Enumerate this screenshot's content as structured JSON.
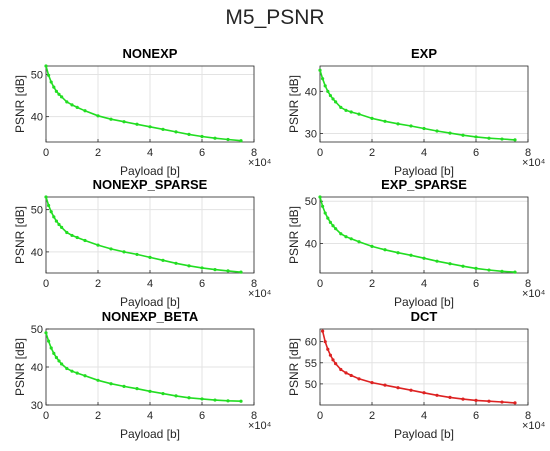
{
  "figure": {
    "title": "M5_PSNR"
  },
  "chart_data": [
    {
      "type": "line",
      "title": "NONEXP",
      "xlabel": "Payload [b]",
      "ylabel": "PSNR [dB]",
      "x_exponent": "×10⁴",
      "xlim": [
        0,
        80000
      ],
      "ylim": [
        34,
        52
      ],
      "yticks": [
        "40",
        "50"
      ],
      "xticks": [
        "0",
        "2",
        "4",
        "6",
        "8"
      ],
      "grid": true,
      "color": "#22dd22",
      "series": [
        {
          "x": [
            0,
            1000,
            2000,
            3000,
            4000,
            5000,
            6000,
            8000,
            10000,
            12000,
            15000,
            20000,
            25000,
            30000,
            35000,
            40000,
            45000,
            50000,
            55000,
            60000,
            65000,
            70000,
            75000
          ],
          "y": [
            52,
            49.8,
            48.2,
            47,
            46,
            45.3,
            44.7,
            43.5,
            42.8,
            42.2,
            41.4,
            40.2,
            39.4,
            38.8,
            38.2,
            37.6,
            37,
            36.4,
            35.8,
            35.3,
            34.9,
            34.6,
            34.3
          ]
        }
      ]
    },
    {
      "type": "line",
      "title": "EXP",
      "xlabel": "Payload [b]",
      "ylabel": "PSNR [dB]",
      "x_exponent": "×10⁴",
      "xlim": [
        0,
        80000
      ],
      "ylim": [
        28,
        46
      ],
      "yticks": [
        "30",
        "40"
      ],
      "xticks": [
        "0",
        "2",
        "4",
        "6",
        "8"
      ],
      "grid": true,
      "color": "#22dd22",
      "series": [
        {
          "x": [
            0,
            1000,
            2000,
            3000,
            4000,
            5000,
            6000,
            8000,
            10000,
            12000,
            15000,
            20000,
            25000,
            30000,
            35000,
            40000,
            45000,
            50000,
            55000,
            60000,
            65000,
            70000,
            75000
          ],
          "y": [
            45,
            43,
            41.3,
            40,
            39,
            38.2,
            37.5,
            36.2,
            35.5,
            35.1,
            34.6,
            33.6,
            32.9,
            32.3,
            31.8,
            31.2,
            30.6,
            30.1,
            29.6,
            29.2,
            28.9,
            28.7,
            28.5
          ]
        }
      ]
    },
    {
      "type": "line",
      "title": "NONEXP_SPARSE",
      "xlabel": "Payload [b]",
      "ylabel": "PSNR [dB]",
      "x_exponent": "×10⁴",
      "xlim": [
        0,
        80000
      ],
      "ylim": [
        35,
        53
      ],
      "yticks": [
        "40",
        "50"
      ],
      "xticks": [
        "0",
        "2",
        "4",
        "6",
        "8"
      ],
      "grid": true,
      "color": "#22dd22",
      "series": [
        {
          "x": [
            0,
            1000,
            2000,
            3000,
            4000,
            5000,
            6000,
            8000,
            10000,
            12000,
            15000,
            20000,
            25000,
            30000,
            35000,
            40000,
            45000,
            50000,
            55000,
            60000,
            65000,
            70000,
            75000
          ],
          "y": [
            53,
            51,
            49.5,
            48.3,
            47.3,
            46.5,
            45.8,
            44.6,
            43.9,
            43.4,
            42.7,
            41.6,
            40.7,
            40,
            39.4,
            38.7,
            38,
            37.3,
            36.7,
            36.2,
            35.8,
            35.5,
            35.2
          ]
        }
      ]
    },
    {
      "type": "line",
      "title": "EXP_SPARSE",
      "xlabel": "Payload [b]",
      "ylabel": "PSNR [dB]",
      "x_exponent": "×10⁴",
      "xlim": [
        0,
        80000
      ],
      "ylim": [
        33,
        51
      ],
      "yticks": [
        "40",
        "50"
      ],
      "xticks": [
        "0",
        "2",
        "4",
        "6",
        "8"
      ],
      "grid": true,
      "color": "#22dd22",
      "series": [
        {
          "x": [
            0,
            1000,
            2000,
            3000,
            4000,
            5000,
            6000,
            8000,
            10000,
            12000,
            15000,
            20000,
            25000,
            30000,
            35000,
            40000,
            45000,
            50000,
            55000,
            60000,
            65000,
            70000,
            75000
          ],
          "y": [
            51,
            48.8,
            47.2,
            46,
            45,
            44.2,
            43.5,
            42.3,
            41.6,
            41.1,
            40.4,
            39.3,
            38.5,
            37.8,
            37.2,
            36.5,
            35.8,
            35.2,
            34.6,
            34.1,
            33.7,
            33.4,
            33.2
          ]
        }
      ]
    },
    {
      "type": "line",
      "title": "NONEXP_BETA",
      "xlabel": "Payload [b]",
      "ylabel": "PSNR [dB]",
      "x_exponent": "×10⁴",
      "xlim": [
        0,
        80000
      ],
      "ylim": [
        30,
        50
      ],
      "yticks": [
        "30",
        "40",
        "50"
      ],
      "xticks": [
        "0",
        "2",
        "4",
        "6",
        "8"
      ],
      "grid": true,
      "color": "#22dd22",
      "series": [
        {
          "x": [
            0,
            1000,
            2000,
            3000,
            4000,
            5000,
            6000,
            8000,
            10000,
            12000,
            15000,
            20000,
            25000,
            30000,
            35000,
            40000,
            45000,
            50000,
            55000,
            60000,
            65000,
            70000,
            75000
          ],
          "y": [
            49,
            46.8,
            45,
            43.6,
            42.5,
            41.6,
            40.8,
            39.6,
            38.9,
            38.4,
            37.7,
            36.5,
            35.6,
            34.9,
            34.3,
            33.6,
            33,
            32.4,
            31.9,
            31.6,
            31.3,
            31.1,
            31
          ]
        }
      ]
    },
    {
      "type": "line",
      "title": "DCT",
      "xlabel": "Payload [b]",
      "ylabel": "PSNR [dB]",
      "x_exponent": "×10⁴",
      "xlim": [
        0,
        80000
      ],
      "ylim": [
        45,
        63
      ],
      "yticks": [
        "50",
        "55",
        "60"
      ],
      "xticks": [
        "0",
        "2",
        "4",
        "6",
        "8"
      ],
      "grid": true,
      "color": "#dd2222",
      "series": [
        {
          "x": [
            1000,
            2000,
            3000,
            4000,
            5000,
            6000,
            8000,
            10000,
            12000,
            15000,
            20000,
            25000,
            30000,
            35000,
            40000,
            45000,
            50000,
            55000,
            60000,
            65000,
            70000,
            75000
          ],
          "y": [
            62.5,
            60,
            58.2,
            56.8,
            55.7,
            54.8,
            53.4,
            52.6,
            52,
            51.2,
            50.3,
            49.7,
            49.1,
            48.5,
            47.9,
            47.3,
            46.8,
            46.4,
            46.1,
            45.9,
            45.7,
            45.5
          ]
        }
      ]
    }
  ]
}
